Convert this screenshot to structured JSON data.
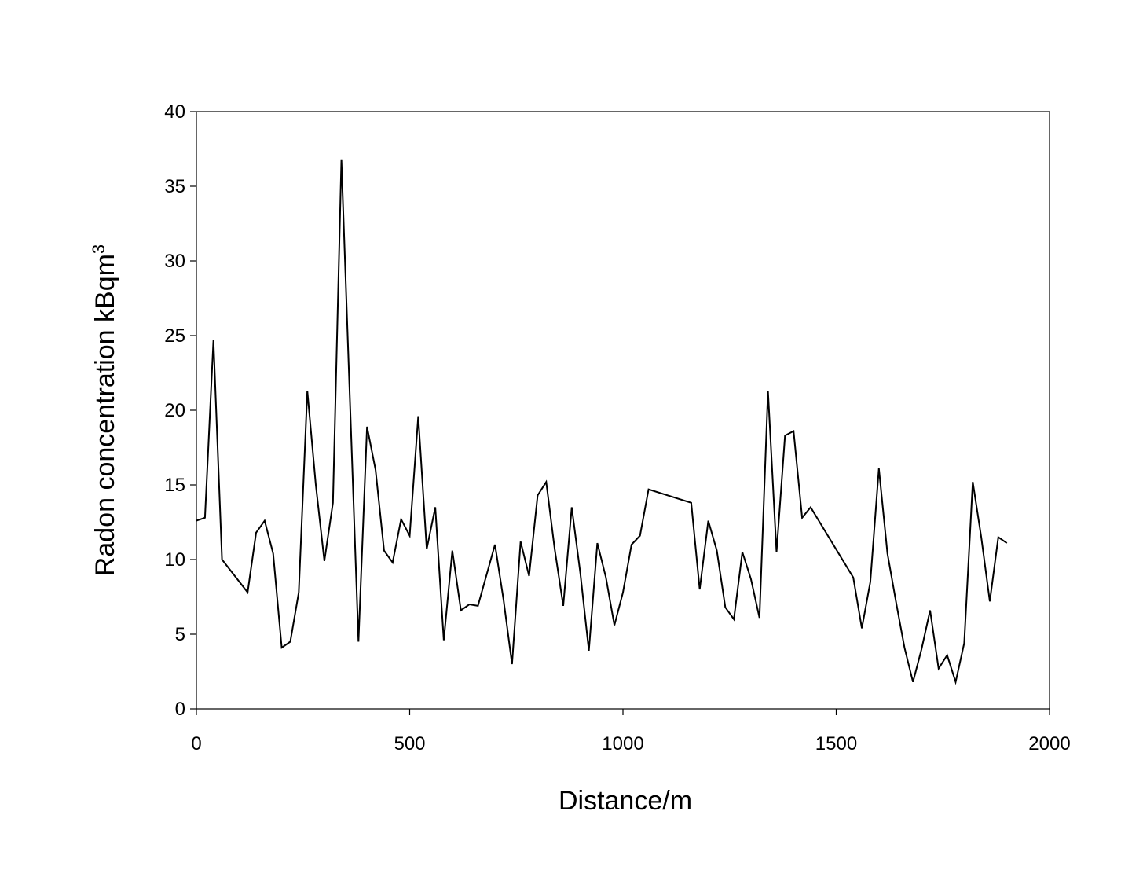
{
  "chart_data": {
    "type": "line",
    "title": "",
    "xlabel": "Distance/m",
    "ylabel": "Radon concentration kBqm",
    "ylabel_superscript": "3",
    "xlim": [
      0,
      2000
    ],
    "ylim": [
      0,
      40
    ],
    "xticks": [
      0,
      500,
      1000,
      1500,
      2000
    ],
    "yticks": [
      0,
      5,
      10,
      15,
      20,
      25,
      30,
      35,
      40
    ],
    "grid": false,
    "legend": "none",
    "line_color": "#000000",
    "series": [
      {
        "x": [
          0,
          20,
          40,
          60,
          120,
          140,
          160,
          180,
          200,
          220,
          240,
          260,
          280,
          300,
          320,
          340,
          380,
          400,
          420,
          440,
          460,
          480,
          500,
          520,
          540,
          560,
          580,
          600,
          620,
          640,
          660,
          700,
          720,
          740,
          760,
          780,
          800,
          820,
          840,
          860,
          880,
          900,
          920,
          940,
          960,
          980,
          1000,
          1020,
          1040,
          1060,
          1160,
          1180,
          1200,
          1220,
          1240,
          1260,
          1280,
          1300,
          1320,
          1340,
          1360,
          1380,
          1400,
          1420,
          1440,
          1540,
          1560,
          1580,
          1600,
          1620,
          1640,
          1660,
          1680,
          1700,
          1720,
          1740,
          1760,
          1780,
          1800,
          1820,
          1840,
          1860,
          1880,
          1900
        ],
        "values": [
          12.6,
          12.8,
          24.7,
          10.0,
          7.8,
          11.8,
          12.6,
          10.4,
          4.1,
          4.5,
          7.8,
          21.3,
          15.0,
          9.9,
          13.8,
          36.8,
          4.5,
          18.9,
          16.0,
          10.6,
          9.8,
          12.7,
          11.6,
          19.6,
          10.7,
          13.5,
          4.6,
          10.6,
          6.6,
          7.0,
          6.9,
          11.0,
          7.3,
          3.0,
          11.2,
          8.9,
          14.3,
          15.2,
          10.7,
          6.9,
          13.5,
          9.1,
          3.9,
          11.1,
          8.8,
          5.6,
          7.8,
          11.0,
          11.6,
          14.7,
          13.8,
          8.0,
          12.6,
          10.6,
          6.8,
          6.0,
          10.5,
          8.7,
          6.1,
          21.3,
          10.5,
          18.3,
          18.6,
          12.8,
          13.5,
          8.8,
          5.4,
          8.5,
          16.1,
          10.4,
          7.2,
          4.1,
          1.8,
          4.0,
          6.6,
          2.7,
          3.6,
          1.8,
          4.4,
          15.2,
          11.5,
          7.2,
          11.5,
          11.1
        ]
      }
    ]
  }
}
